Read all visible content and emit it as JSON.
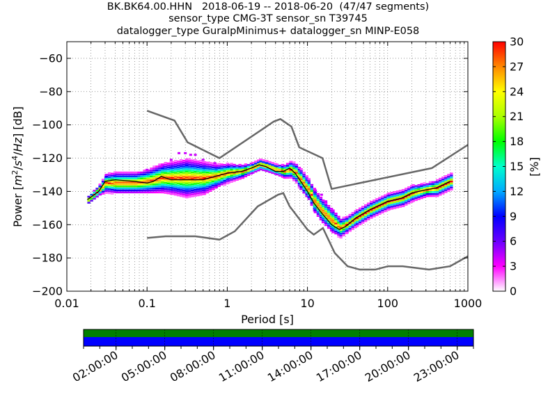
{
  "title_lines": [
    "BK.BK64.00.HHN   2018-06-19 -- 2018-06-20  (47/47 segments)",
    "sensor_type CMG-3T sensor_sn T39745",
    "datalogger_type GuralpMinimus+ datalogger_sn MINP-E058"
  ],
  "chart_data": {
    "type": "heatmap",
    "title": "BK.BK64.00.HHN   2018-06-19 -- 2018-06-20  (47/47 segments)",
    "xlabel": "Period [s]",
    "ylabel": "Power [m²/s⁴/Hz] [dB]",
    "xscale": "log",
    "xlim": [
      0.01,
      1000
    ],
    "ylim": [
      -200,
      -50
    ],
    "xticks": [
      0.01,
      0.1,
      1,
      10,
      100,
      1000
    ],
    "xtick_labels": [
      "0.01",
      "0.1",
      "1",
      "10",
      "100",
      "1000"
    ],
    "yticks": [
      -200,
      -180,
      -160,
      -140,
      -120,
      -100,
      -80,
      -60
    ],
    "ytick_labels": [
      "−200",
      "−180",
      "−160",
      "−140",
      "−120",
      "−100",
      "−80",
      "−60"
    ],
    "grid": true,
    "colorbar": {
      "label": "[%]",
      "min": 0,
      "max": 30,
      "ticks": [
        0,
        3,
        6,
        9,
        12,
        15,
        18,
        21,
        24,
        27,
        30
      ],
      "tick_labels": [
        "0",
        "3",
        "6",
        "9",
        "12",
        "15",
        "18",
        "21",
        "24",
        "27",
        "30"
      ]
    },
    "nlnm_curve": {
      "x": [
        0.1,
        0.17,
        0.4,
        0.8,
        1.24,
        2.4,
        4.3,
        5.0,
        6.0,
        10,
        12,
        15.6,
        21.9,
        31.6,
        45,
        70,
        101,
        154,
        328,
        600,
        1000
      ],
      "y": [
        -168,
        -167,
        -167,
        -169,
        -164,
        -149,
        -142,
        -141,
        -149,
        -163,
        -166,
        -162,
        -177,
        -185,
        -187,
        -187,
        -185,
        -185,
        -187,
        -185,
        -179
      ]
    },
    "nhnm_curve": {
      "x": [
        0.1,
        0.22,
        0.32,
        0.8,
        3.8,
        4.6,
        6.3,
        7.9,
        15.4,
        20,
        354.8,
        1000
      ],
      "y": [
        -91.5,
        -97.4,
        -110.5,
        -120,
        -98,
        -96.5,
        -101,
        -113.5,
        -120,
        -138.5,
        -126,
        -112
      ]
    },
    "median_curve": {
      "x": [
        0.018,
        0.025,
        0.03,
        0.04,
        0.07,
        0.1,
        0.12,
        0.15,
        0.2,
        0.3,
        0.5,
        0.7,
        1.0,
        1.5,
        2.0,
        2.5,
        3.0,
        4.0,
        5.0,
        6.0,
        7.0,
        8.0,
        10,
        12,
        15,
        20,
        25,
        30,
        40,
        60,
        100,
        150,
        200,
        300,
        400,
        600
      ],
      "y": [
        -145,
        -140,
        -134,
        -133,
        -134,
        -135,
        -134,
        -131,
        -133,
        -133,
        -133,
        -131,
        -129,
        -128,
        -126,
        -124,
        -125,
        -128,
        -128,
        -126,
        -129,
        -133,
        -140,
        -147,
        -153,
        -160,
        -163,
        -161,
        -156,
        -151,
        -146,
        -144,
        -141,
        -139,
        -138,
        -134
      ]
    },
    "pdf_band": [
      {
        "x": 0.018,
        "y": -145,
        "spread": 3
      },
      {
        "x": 0.025,
        "y": -139,
        "spread": 4
      },
      {
        "x": 0.03,
        "y": -135,
        "spread": 7
      },
      {
        "x": 0.04,
        "y": -135,
        "spread": 8
      },
      {
        "x": 0.07,
        "y": -135,
        "spread": 8
      },
      {
        "x": 0.1,
        "y": -134,
        "spread": 9
      },
      {
        "x": 0.15,
        "y": -132,
        "spread": 11
      },
      {
        "x": 0.2,
        "y": -132,
        "spread": 12
      },
      {
        "x": 0.3,
        "y": -132,
        "spread": 14
      },
      {
        "x": 0.5,
        "y": -132,
        "spread": 12
      },
      {
        "x": 0.7,
        "y": -131,
        "spread": 9
      },
      {
        "x": 1.0,
        "y": -129,
        "spread": 7
      },
      {
        "x": 1.5,
        "y": -128,
        "spread": 5
      },
      {
        "x": 2.0,
        "y": -126,
        "spread": 4
      },
      {
        "x": 2.5,
        "y": -124,
        "spread": 4
      },
      {
        "x": 3.0,
        "y": -125,
        "spread": 4
      },
      {
        "x": 4.0,
        "y": -127,
        "spread": 4
      },
      {
        "x": 5.0,
        "y": -128,
        "spread": 5
      },
      {
        "x": 6.0,
        "y": -127,
        "spread": 6
      },
      {
        "x": 7.0,
        "y": -129,
        "spread": 7
      },
      {
        "x": 8.0,
        "y": -133,
        "spread": 8
      },
      {
        "x": 10,
        "y": -139,
        "spread": 8
      },
      {
        "x": 12,
        "y": -146,
        "spread": 9
      },
      {
        "x": 15,
        "y": -152,
        "spread": 9
      },
      {
        "x": 20,
        "y": -158,
        "spread": 9
      },
      {
        "x": 25,
        "y": -162,
        "spread": 7
      },
      {
        "x": 30,
        "y": -160,
        "spread": 6
      },
      {
        "x": 40,
        "y": -156,
        "spread": 6
      },
      {
        "x": 60,
        "y": -151,
        "spread": 6
      },
      {
        "x": 100,
        "y": -146,
        "spread": 6
      },
      {
        "x": 150,
        "y": -144,
        "spread": 6
      },
      {
        "x": 200,
        "y": -141,
        "spread": 6
      },
      {
        "x": 300,
        "y": -139,
        "spread": 5
      },
      {
        "x": 400,
        "y": -138,
        "spread": 6
      },
      {
        "x": 600,
        "y": -134,
        "spread": 6
      }
    ],
    "scatter_outliers": [
      {
        "x": 0.25,
        "y": -117
      },
      {
        "x": 0.3,
        "y": -117
      },
      {
        "x": 0.35,
        "y": -118
      },
      {
        "x": 0.4,
        "y": -118
      },
      {
        "x": 0.2,
        "y": -121
      },
      {
        "x": 0.15,
        "y": -125
      },
      {
        "x": 0.5,
        "y": -121
      },
      {
        "x": 0.7,
        "y": -123
      },
      {
        "x": 0.1,
        "y": -127
      },
      {
        "x": 15,
        "y": -142
      },
      {
        "x": 17,
        "y": -146
      },
      {
        "x": 20,
        "y": -152
      }
    ]
  },
  "timeline": {
    "top_color": "#008000",
    "bottom_color": "#0000ff",
    "labels": [
      "02:00:00",
      "05:00:00",
      "08:00:00",
      "11:00:00",
      "14:00:00",
      "17:00:00",
      "20:00:00",
      "23:00:00"
    ]
  }
}
